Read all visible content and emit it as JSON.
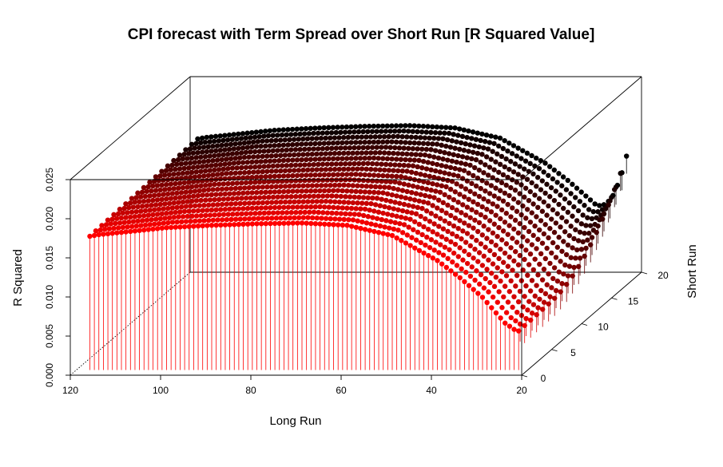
{
  "chart_data": {
    "type": "scatter3d",
    "title": "CPI forecast with Term Spread over Short Run [R Squared Value]",
    "xlabel": "Long Run",
    "ylabel": "Short Run",
    "zlabel": "R Squared",
    "xlim": [
      120,
      20
    ],
    "ylim": [
      0,
      20
    ],
    "zlim": [
      0,
      0.025
    ],
    "x_ticks": [
      "120",
      "100",
      "80",
      "60",
      "40",
      "20"
    ],
    "y_ticks": [
      "0",
      "5",
      "10",
      "15",
      "20"
    ],
    "z_ticks": [
      "0.000",
      "0.005",
      "0.010",
      "0.015",
      "0.020",
      "0.025"
    ],
    "x_range": [
      22,
      117
    ],
    "y_range": [
      1,
      19
    ],
    "type_h": true,
    "color_by_short_run": [
      "#ff0000",
      "#000000"
    ],
    "surface_profile_long_run": [
      {
        "x": 117,
        "z": 0.0171
      },
      {
        "x": 115,
        "z": 0.0173
      },
      {
        "x": 110,
        "z": 0.0176
      },
      {
        "x": 100,
        "z": 0.0182
      },
      {
        "x": 90,
        "z": 0.0185
      },
      {
        "x": 80,
        "z": 0.0187
      },
      {
        "x": 70,
        "z": 0.0188
      },
      {
        "x": 60,
        "z": 0.0185
      },
      {
        "x": 50,
        "z": 0.0172
      },
      {
        "x": 40,
        "z": 0.014
      },
      {
        "x": 35,
        "z": 0.0118
      },
      {
        "x": 30,
        "z": 0.0093
      },
      {
        "x": 27,
        "z": 0.0073
      },
      {
        "x": 25,
        "z": 0.006
      },
      {
        "x": 23,
        "z": 0.0052
      },
      {
        "x": 22,
        "z": 0.005
      }
    ],
    "short_run_effect": [
      {
        "y": 1,
        "delta": 0.0
      },
      {
        "y": 19,
        "delta": 0.0006
      }
    ],
    "end_rise_at_short_run_max": [
      {
        "x": 22,
        "z": 0.0155
      }
    ]
  }
}
